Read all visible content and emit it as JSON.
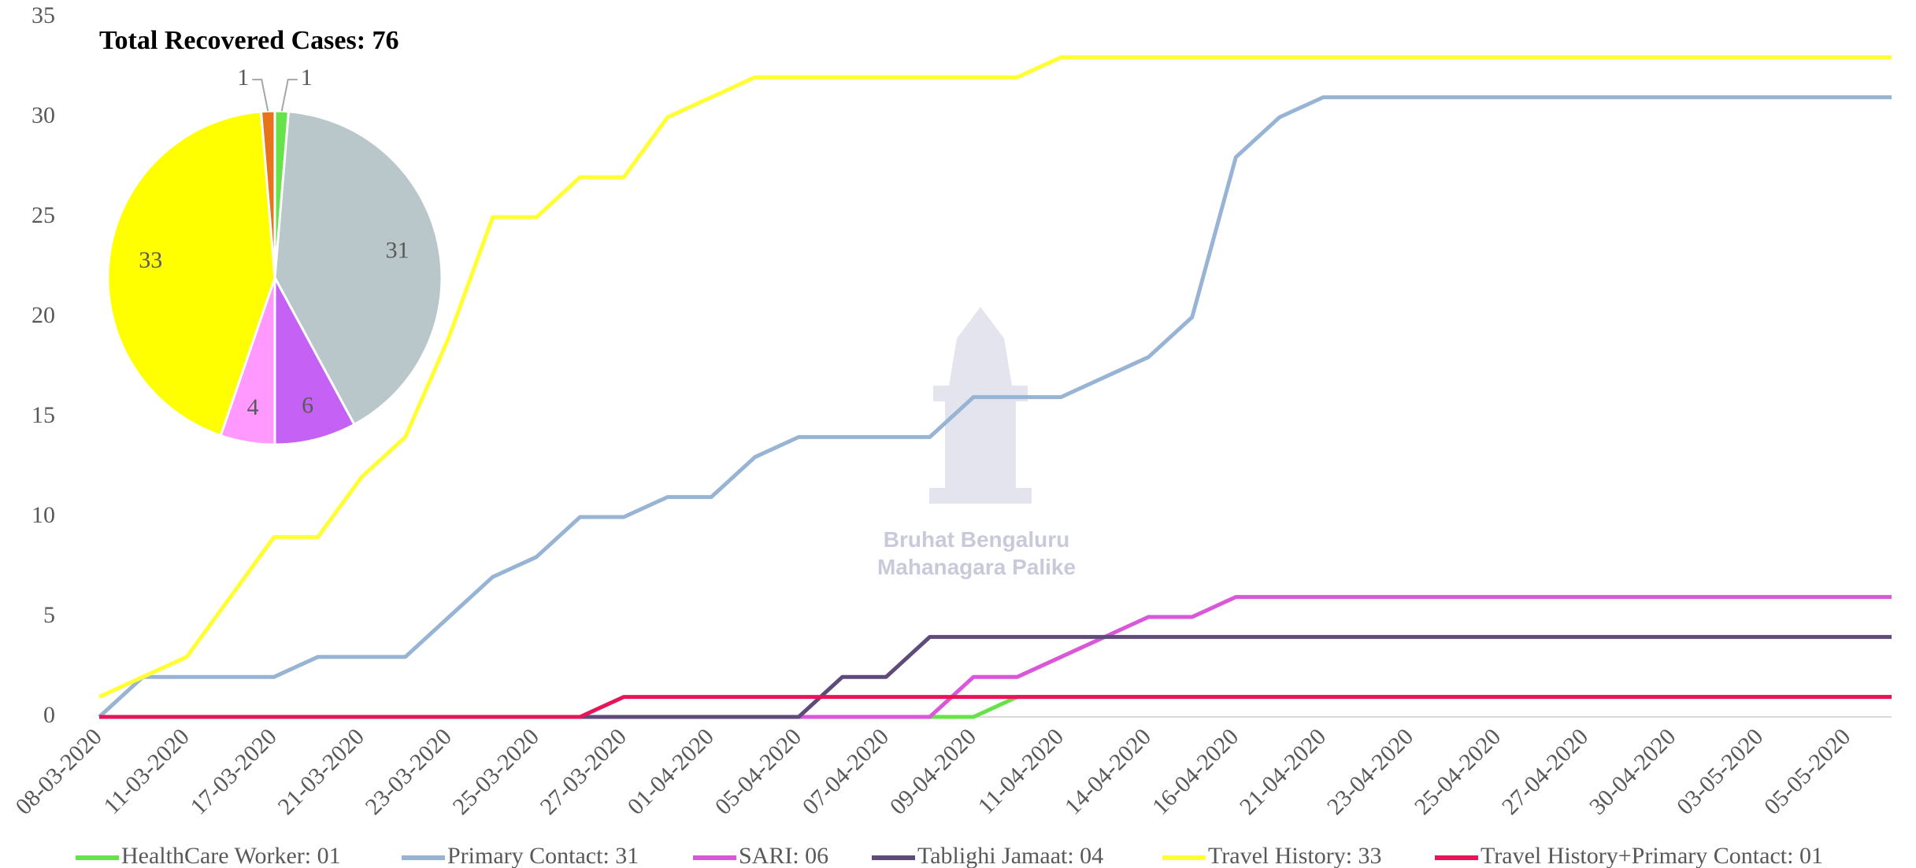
{
  "chart_data": [
    {
      "type": "line",
      "categories": [
        "08-03-2020",
        null,
        "11-03-2020",
        null,
        "17-03-2020",
        null,
        "21-03-2020",
        null,
        "23-03-2020",
        null,
        "25-03-2020",
        null,
        "27-03-2020",
        null,
        "01-04-2020",
        null,
        "05-04-2020",
        null,
        "07-04-2020",
        null,
        "09-04-2020",
        null,
        "11-04-2020",
        null,
        "14-04-2020",
        null,
        "16-04-2020",
        null,
        "21-04-2020",
        null,
        "23-04-2020",
        null,
        "25-04-2020",
        null,
        "27-04-2020",
        null,
        "30-04-2020",
        null,
        "03-05-2020",
        null,
        "05-05-2020",
        null
      ],
      "series": [
        {
          "name": "HealthCare Worker: 01",
          "color": "#66e24a",
          "values": [
            0,
            0,
            0,
            0,
            0,
            0,
            0,
            0,
            0,
            0,
            0,
            0,
            0,
            0,
            0,
            0,
            0,
            0,
            0,
            0,
            0,
            1,
            1,
            1,
            1,
            1,
            1,
            1,
            1,
            1,
            1,
            1,
            1,
            1,
            1,
            1,
            1,
            1,
            1,
            1,
            1,
            1
          ]
        },
        {
          "name": "Primary Contact: 31",
          "color": "#98b4d4",
          "values": [
            0,
            2,
            2,
            2,
            2,
            3,
            3,
            3,
            5,
            7,
            8,
            10,
            10,
            11,
            11,
            13,
            14,
            14,
            14,
            14,
            16,
            16,
            16,
            17,
            18,
            20,
            28,
            30,
            31,
            31,
            31,
            31,
            31,
            31,
            31,
            31,
            31,
            31,
            31,
            31,
            31,
            31
          ]
        },
        {
          "name": "SARI: 06",
          "color": "#d957d9",
          "values": [
            0,
            0,
            0,
            0,
            0,
            0,
            0,
            0,
            0,
            0,
            0,
            0,
            0,
            0,
            0,
            0,
            0,
            0,
            0,
            0,
            2,
            2,
            3,
            4,
            5,
            5,
            6,
            6,
            6,
            6,
            6,
            6,
            6,
            6,
            6,
            6,
            6,
            6,
            6,
            6,
            6,
            6
          ]
        },
        {
          "name": "Tablighi Jamaat: 04",
          "color": "#5f4b7a",
          "values": [
            0,
            0,
            0,
            0,
            0,
            0,
            0,
            0,
            0,
            0,
            0,
            0,
            0,
            0,
            0,
            0,
            0,
            2,
            2,
            4,
            4,
            4,
            4,
            4,
            4,
            4,
            4,
            4,
            4,
            4,
            4,
            4,
            4,
            4,
            4,
            4,
            4,
            4,
            4,
            4,
            4,
            4
          ]
        },
        {
          "name": "Travel History: 33",
          "color": "#ffff33",
          "values": [
            1,
            2,
            3,
            6,
            9,
            9,
            12,
            14,
            19,
            25,
            25,
            27,
            27,
            30,
            31,
            32,
            32,
            32,
            32,
            32,
            32,
            32,
            33,
            33,
            33,
            33,
            33,
            33,
            33,
            33,
            33,
            33,
            33,
            33,
            33,
            33,
            33,
            33,
            33,
            33,
            33,
            33
          ]
        },
        {
          "name": "Travel History+Primary Contact: 01",
          "color": "#e8145a",
          "values": [
            0,
            0,
            0,
            0,
            0,
            0,
            0,
            0,
            0,
            0,
            0,
            0,
            1,
            1,
            1,
            1,
            1,
            1,
            1,
            1,
            1,
            1,
            1,
            1,
            1,
            1,
            1,
            1,
            1,
            1,
            1,
            1,
            1,
            1,
            1,
            1,
            1,
            1,
            1,
            1,
            1,
            1
          ]
        }
      ],
      "ylim": [
        0,
        35
      ],
      "yticks": [
        0,
        5,
        10,
        15,
        20,
        25,
        30,
        35
      ],
      "grid": false,
      "legend": "bottom",
      "watermark": [
        "Bruhat Bengaluru",
        "Mahanagara Palike"
      ]
    },
    {
      "type": "pie",
      "title": "Total Recovered Cases: 76",
      "values": [
        1,
        31,
        6,
        4,
        33,
        1
      ],
      "colors": [
        "#66e24a",
        "#b9c6ca",
        "#c661f5",
        "#ff99ff",
        "#ffff00",
        "#e8731b"
      ]
    }
  ]
}
